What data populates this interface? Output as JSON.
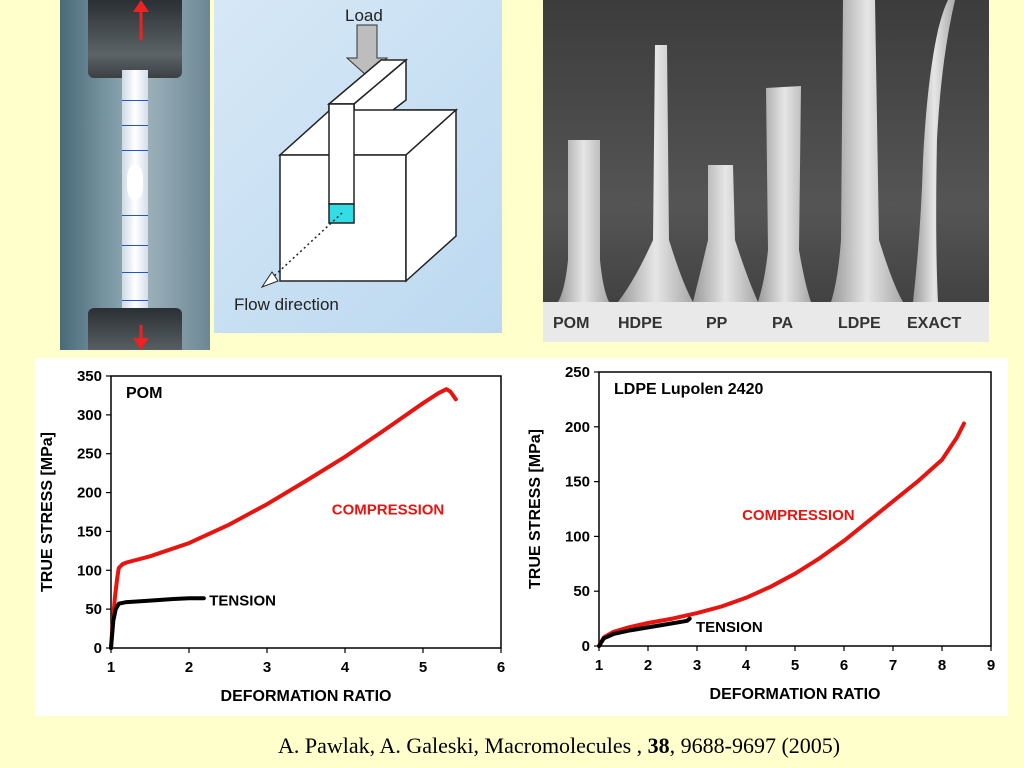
{
  "schematic": {
    "load_label": "Load",
    "flow_label": "Flow direction"
  },
  "sem": {
    "labels": [
      "POM",
      "HDPE",
      "PP",
      "PA",
      "LDPE",
      "EXACT"
    ]
  },
  "citation": {
    "authors": "A. Pawlak, A. Galeski, Macromolecules , ",
    "volume": "38",
    "rest": ", 9688-9697 (2005)"
  },
  "colors": {
    "compression": "#e8140f",
    "tension": "#000000",
    "background": "#ffffcc"
  },
  "chart_data": [
    {
      "type": "line",
      "title": "POM",
      "xlabel": "DEFORMATION RATIO",
      "ylabel": "TRUE STRESS [MPa]",
      "xlim": [
        1,
        6
      ],
      "ylim": [
        0,
        350
      ],
      "xticks": [
        1,
        2,
        3,
        4,
        5,
        6
      ],
      "yticks": [
        0,
        50,
        100,
        150,
        200,
        250,
        300,
        350
      ],
      "grid": false,
      "series": [
        {
          "name": "COMPRESSION",
          "color": "#e8140f",
          "x": [
            1.0,
            1.02,
            1.05,
            1.08,
            1.1,
            1.15,
            1.2,
            1.5,
            2.0,
            2.5,
            3.0,
            3.5,
            4.0,
            4.5,
            5.0,
            5.2,
            5.3,
            5.35,
            5.42
          ],
          "y": [
            0,
            30,
            65,
            90,
            103,
            108,
            110,
            118,
            135,
            158,
            185,
            215,
            246,
            280,
            315,
            328,
            333,
            330,
            320
          ]
        },
        {
          "name": "TENSION",
          "color": "#000000",
          "x": [
            1.0,
            1.03,
            1.06,
            1.1,
            1.2,
            1.5,
            1.8,
            2.0,
            2.19
          ],
          "y": [
            0,
            35,
            50,
            57,
            59,
            61,
            63,
            64,
            64
          ]
        }
      ]
    },
    {
      "type": "line",
      "title": "LDPE Lupolen 2420",
      "xlabel": "DEFORMATION RATIO",
      "ylabel": "TRUE STRESS [MPa]",
      "xlim": [
        1,
        9
      ],
      "ylim": [
        0,
        250
      ],
      "xticks": [
        1,
        2,
        3,
        4,
        5,
        6,
        7,
        8,
        9
      ],
      "yticks": [
        0,
        50,
        100,
        150,
        200,
        250
      ],
      "grid": false,
      "series": [
        {
          "name": "COMPRESSION",
          "color": "#e8140f",
          "x": [
            1.0,
            1.1,
            1.3,
            1.6,
            2.0,
            2.5,
            3.0,
            3.5,
            4.0,
            4.5,
            5.0,
            5.5,
            6.0,
            6.5,
            7.0,
            7.5,
            8.0,
            8.3,
            8.45
          ],
          "y": [
            0,
            8,
            13,
            17,
            21,
            25,
            30,
            36,
            44,
            54,
            66,
            80,
            96,
            114,
            132,
            150,
            170,
            190,
            203
          ]
        },
        {
          "name": "TENSION",
          "color": "#000000",
          "x": [
            1.0,
            1.1,
            1.3,
            1.6,
            2.0,
            2.4,
            2.8,
            2.85
          ],
          "y": [
            0,
            7,
            11,
            14,
            17,
            20,
            23,
            25
          ]
        }
      ]
    }
  ]
}
